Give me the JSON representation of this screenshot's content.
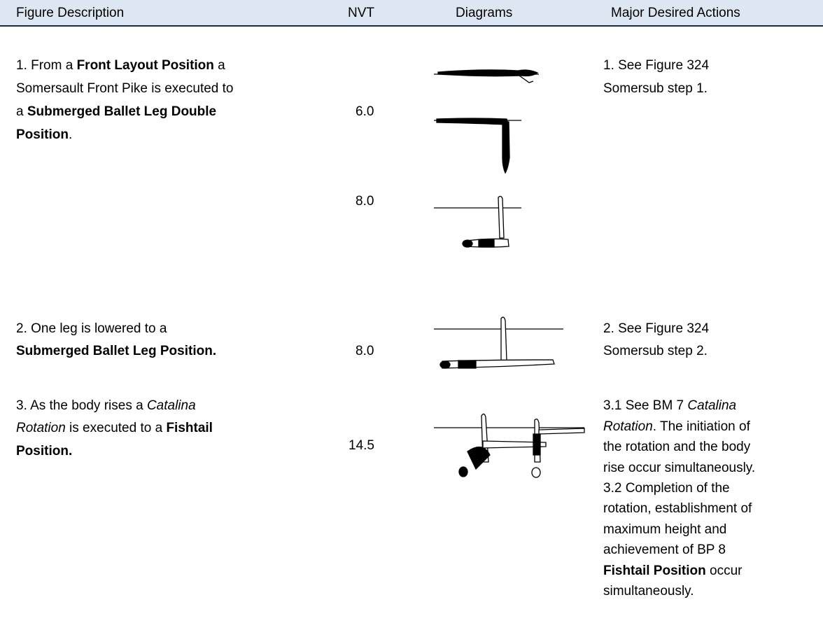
{
  "header": [
    "Figure Description",
    "NVT",
    "Diagrams",
    "Major Desired Actions"
  ],
  "rows": [
    {
      "description": [
        [
          {
            "text": "1. From a "
          },
          {
            "text": "Front Layout Position",
            "bold": true
          },
          {
            "text": " a"
          }
        ],
        [
          {
            "text": "Somersault Front Pike is executed to"
          }
        ],
        [
          {
            "text": "a "
          },
          {
            "text": "Submerged Ballet Leg Double",
            "bold": true
          }
        ],
        [
          {
            "text": "Position",
            "bold": true
          },
          {
            "text": "."
          }
        ]
      ],
      "nvt": [
        "6.0",
        "8.0"
      ],
      "actions": [
        [
          {
            "text": "1. See Figure 324"
          }
        ],
        [
          {
            "text": "Somersub step 1."
          }
        ]
      ]
    },
    {
      "description": [
        [
          {
            "text": "2. One leg is lowered to a"
          }
        ],
        [
          {
            "text": "Submerged Ballet Leg Position.",
            "bold": true
          }
        ]
      ],
      "nvt": [
        "8.0"
      ],
      "actions": [
        [
          {
            "text": "2. See Figure 324"
          }
        ],
        [
          {
            "text": "Somersub step 2."
          }
        ]
      ]
    },
    {
      "description": [
        [
          {
            "text": "3. As the body rises a "
          },
          {
            "text": "Catalina",
            "italic": true
          }
        ],
        [
          {
            "text": "Rotation",
            "italic": true
          },
          {
            "text": " is executed to a "
          },
          {
            "text": "Fishtail",
            "bold": true
          }
        ],
        [
          {
            "text": "Position.",
            "bold": true
          }
        ]
      ],
      "nvt": [
        "14.5"
      ],
      "actions": [
        [
          {
            "text": "3.1 See BM 7 "
          },
          {
            "text": "Catalina",
            "italic": true
          }
        ],
        [
          {
            "text": "Rotation",
            "italic": true
          },
          {
            "text": ". The initiation of"
          }
        ],
        [
          {
            "text": "the rotation and the body"
          }
        ],
        [
          {
            "text": "rise occur simultaneously."
          }
        ],
        [
          {
            "text": "3.2 Completion of the"
          }
        ],
        [
          {
            "text": "rotation, establishment of"
          }
        ],
        [
          {
            "text": "maximum height and"
          }
        ],
        [
          {
            "text": "achievement of BP 8"
          }
        ],
        [
          {
            "text": "Fishtail Position",
            "bold": true
          },
          {
            "text": " occur"
          }
        ],
        [
          {
            "text": "simultaneously."
          }
        ]
      ]
    }
  ]
}
